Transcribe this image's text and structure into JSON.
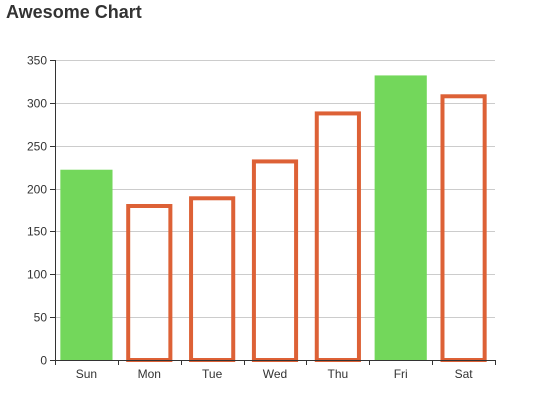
{
  "chart_data": {
    "type": "bar",
    "title": "Awesome Chart",
    "categories": [
      "Sun",
      "Mon",
      "Tue",
      "Wed",
      "Thu",
      "Fri",
      "Sat"
    ],
    "series": [
      {
        "values": [
          222,
          182,
          191,
          234,
          290,
          332,
          310
        ]
      }
    ],
    "ylim": [
      0,
      350
    ],
    "yticks": [
      0,
      50,
      100,
      150,
      200,
      250,
      300,
      350
    ],
    "grid": true,
    "bar_styles": [
      "filled",
      "outlined",
      "outlined",
      "outlined",
      "outlined",
      "filled",
      "outlined"
    ],
    "colors": {
      "filled": "#73d75b",
      "outline": "#dd6136",
      "grid": "#cccccc",
      "axis": "#333333",
      "text": "#333333"
    }
  }
}
